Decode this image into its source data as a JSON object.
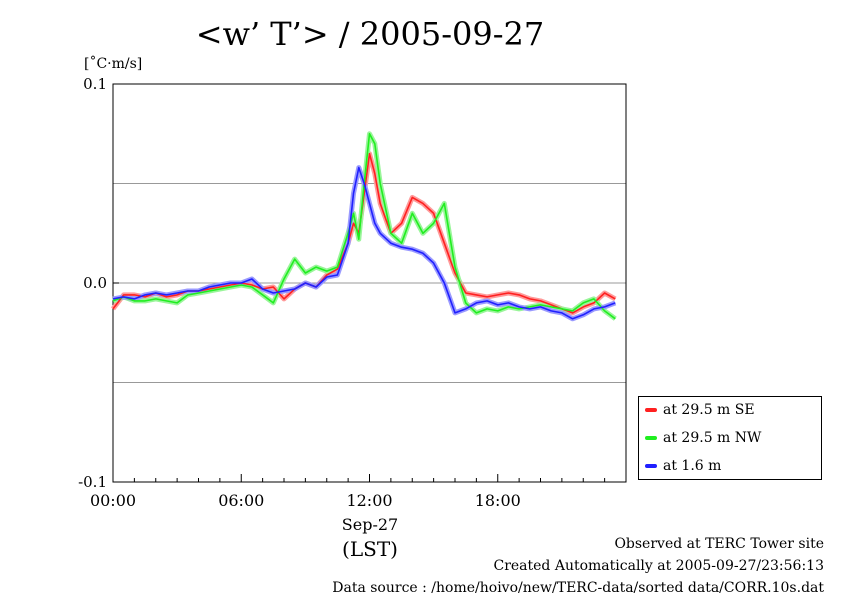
{
  "chart_data": {
    "type": "line",
    "title": "<w’ T’> / 2005-09-27",
    "ylabel": "[˚C·m/s]",
    "xlabel": "(LST)",
    "date_label": "Sep-27",
    "x_ticks": [
      "00:00",
      "06:00",
      "12:00",
      "18:00"
    ],
    "y_ticks": [
      "0.1",
      "0.0",
      "-0.1"
    ],
    "xlim": [
      0,
      24
    ],
    "ylim": [
      -0.1,
      0.1
    ],
    "grid_y": [
      -0.05,
      0.0,
      0.05
    ],
    "legend_placement": "right",
    "x": [
      0,
      0.5,
      1,
      1.5,
      2,
      2.5,
      3,
      3.5,
      4,
      4.5,
      5,
      5.5,
      6,
      6.5,
      7,
      7.5,
      8,
      8.5,
      9,
      9.5,
      10,
      10.5,
      11,
      11.25,
      11.5,
      11.75,
      12,
      12.25,
      12.5,
      13,
      13.5,
      14,
      14.5,
      15,
      15.5,
      16,
      16.5,
      17,
      17.5,
      18,
      18.5,
      19,
      19.5,
      20,
      20.5,
      21,
      21.5,
      22,
      22.5,
      23,
      23.5
    ],
    "series": [
      {
        "name": "at 29.5 m SE",
        "color": "#ff2020",
        "values": [
          -0.013,
          -0.006,
          -0.006,
          -0.007,
          -0.005,
          -0.007,
          -0.006,
          -0.004,
          -0.004,
          -0.003,
          -0.002,
          -0.001,
          0.0,
          -0.001,
          -0.003,
          -0.002,
          -0.008,
          -0.003,
          0.0,
          -0.002,
          0.004,
          0.007,
          0.02,
          0.03,
          0.025,
          0.045,
          0.065,
          0.055,
          0.04,
          0.025,
          0.03,
          0.043,
          0.04,
          0.035,
          0.02,
          0.005,
          -0.005,
          -0.006,
          -0.007,
          -0.006,
          -0.005,
          -0.006,
          -0.008,
          -0.009,
          -0.011,
          -0.013,
          -0.015,
          -0.012,
          -0.01,
          -0.005,
          -0.008
        ]
      },
      {
        "name": "at 29.5 m NW",
        "color": "#20ee20",
        "values": [
          -0.009,
          -0.007,
          -0.009,
          -0.009,
          -0.008,
          -0.009,
          -0.01,
          -0.006,
          -0.005,
          -0.004,
          -0.003,
          -0.002,
          -0.001,
          -0.002,
          -0.006,
          -0.01,
          0.002,
          0.012,
          0.005,
          0.008,
          0.006,
          0.008,
          0.025,
          0.035,
          0.022,
          0.05,
          0.075,
          0.07,
          0.05,
          0.025,
          0.02,
          0.035,
          0.025,
          0.03,
          0.04,
          0.008,
          -0.01,
          -0.015,
          -0.013,
          -0.014,
          -0.012,
          -0.013,
          -0.012,
          -0.011,
          -0.012,
          -0.013,
          -0.014,
          -0.01,
          -0.008,
          -0.014,
          -0.018
        ]
      },
      {
        "name": "at 1.6 m",
        "color": "#2020ff",
        "values": [
          -0.008,
          -0.007,
          -0.008,
          -0.006,
          -0.005,
          -0.006,
          -0.005,
          -0.004,
          -0.004,
          -0.002,
          -0.001,
          0.0,
          0.0,
          0.002,
          -0.003,
          -0.005,
          -0.004,
          -0.003,
          0.0,
          -0.002,
          0.003,
          0.004,
          0.02,
          0.045,
          0.058,
          0.05,
          0.04,
          0.03,
          0.025,
          0.02,
          0.018,
          0.017,
          0.015,
          0.01,
          0.0,
          -0.015,
          -0.013,
          -0.01,
          -0.009,
          -0.011,
          -0.01,
          -0.012,
          -0.013,
          -0.012,
          -0.014,
          -0.015,
          -0.018,
          -0.016,
          -0.013,
          -0.012,
          -0.01
        ]
      }
    ]
  },
  "footer": {
    "line1": "Observed at TERC Tower site",
    "line2": "Created Automatically at 2005-09-27/23:56:13",
    "line3": "Data source : /home/hoivo/new/TERC-data/sorted  data/CORR.10s.dat"
  }
}
